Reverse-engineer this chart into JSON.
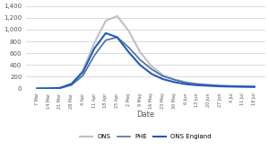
{
  "title": "",
  "xlabel": "Date",
  "ylabel": "",
  "ylim": [
    0,
    1400
  ],
  "yticks": [
    0,
    200,
    400,
    600,
    800,
    1000,
    1200,
    1400
  ],
  "background_color": "#ffffff",
  "line_colors": {
    "ONS": "#4a6fa5",
    "PHE": "#1f5bbd",
    "ONS England": "#c0c0c8"
  },
  "legend_labels": [
    "ONS",
    "PHE",
    "ONS England"
  ],
  "x_labels": [
    "7 Mar",
    "14 Mar",
    "21 Mar",
    "28 Mar",
    "4 Apr",
    "11 Apr",
    "18 Apr",
    "25 Apr",
    "2 May",
    "9 May",
    "16 May",
    "23 May",
    "30 May",
    "6 Jun",
    "13 Jun",
    "20 Jun",
    "27 Jun",
    "4 Jul",
    "11 Jul",
    "18 Jul"
  ],
  "ons_data": [
    2,
    3,
    8,
    60,
    220,
    560,
    820,
    870,
    700,
    490,
    330,
    210,
    150,
    100,
    75,
    60,
    48,
    42,
    38,
    35
  ],
  "phe_data": [
    2,
    4,
    12,
    80,
    280,
    680,
    940,
    870,
    620,
    400,
    250,
    160,
    110,
    75,
    58,
    48,
    38,
    34,
    30,
    28
  ],
  "ons_england_data": [
    2,
    3,
    10,
    75,
    310,
    770,
    1150,
    1230,
    980,
    620,
    380,
    230,
    155,
    110,
    82,
    66,
    52,
    46,
    42,
    38
  ]
}
